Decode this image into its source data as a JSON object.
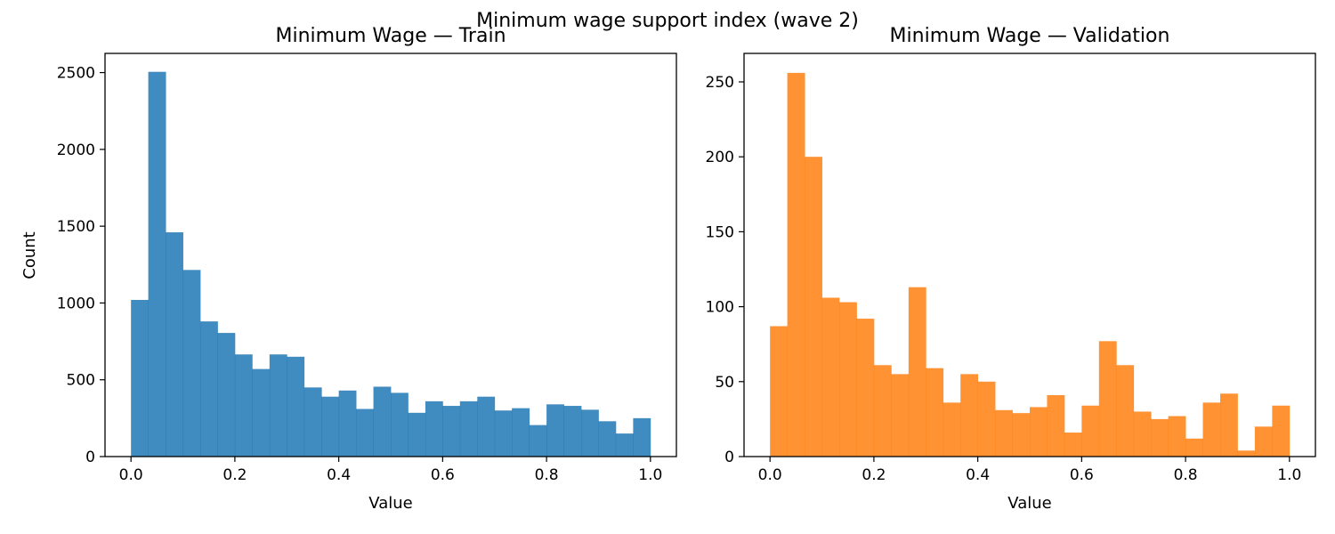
{
  "figure": {
    "suptitle": "Minimum wage support index (wave 2)"
  },
  "chart_data": [
    {
      "type": "bar",
      "title": "Minimum Wage — Train",
      "xlabel": "Value",
      "ylabel": "Count",
      "color": "#1f77b4",
      "xlim": [
        -0.05,
        1.05
      ],
      "ylim": [
        0,
        2625
      ],
      "xticks": [
        "0.0",
        "0.2",
        "0.4",
        "0.6",
        "0.8",
        "1.0"
      ],
      "yticks": [
        "0",
        "500",
        "1000",
        "1500",
        "2000",
        "2500"
      ],
      "bin_edges": [
        0.0,
        0.0333,
        0.0667,
        0.1,
        0.1333,
        0.1667,
        0.2,
        0.2333,
        0.2667,
        0.3,
        0.3333,
        0.3667,
        0.4,
        0.4333,
        0.4667,
        0.5,
        0.5333,
        0.5667,
        0.6,
        0.6333,
        0.6667,
        0.7,
        0.7333,
        0.7667,
        0.8,
        0.8333,
        0.8667,
        0.9,
        0.9333,
        0.9667,
        1.0
      ],
      "values": [
        1020,
        2505,
        1460,
        1215,
        880,
        805,
        665,
        570,
        665,
        650,
        450,
        390,
        430,
        310,
        455,
        415,
        285,
        360,
        330,
        360,
        390,
        300,
        315,
        205,
        340,
        330,
        305,
        230,
        150,
        250
      ]
    },
    {
      "type": "bar",
      "title": "Minimum Wage — Validation",
      "xlabel": "Value",
      "ylabel": "",
      "color": "#ff7f0e",
      "xlim": [
        -0.05,
        1.05
      ],
      "ylim": [
        0,
        269
      ],
      "xticks": [
        "0.0",
        "0.2",
        "0.4",
        "0.6",
        "0.8",
        "1.0"
      ],
      "yticks": [
        "0",
        "50",
        "100",
        "150",
        "200",
        "250"
      ],
      "bin_edges": [
        0.0,
        0.0333,
        0.0667,
        0.1,
        0.1333,
        0.1667,
        0.2,
        0.2333,
        0.2667,
        0.3,
        0.3333,
        0.3667,
        0.4,
        0.4333,
        0.4667,
        0.5,
        0.5333,
        0.5667,
        0.6,
        0.6333,
        0.6667,
        0.7,
        0.7333,
        0.7667,
        0.8,
        0.8333,
        0.8667,
        0.9,
        0.9333,
        0.9667,
        1.0
      ],
      "values": [
        87,
        256,
        200,
        106,
        103,
        92,
        61,
        55,
        113,
        59,
        36,
        55,
        50,
        31,
        29,
        33,
        41,
        16,
        34,
        77,
        61,
        30,
        25,
        27,
        12,
        36,
        42,
        4,
        20,
        34
      ]
    }
  ]
}
